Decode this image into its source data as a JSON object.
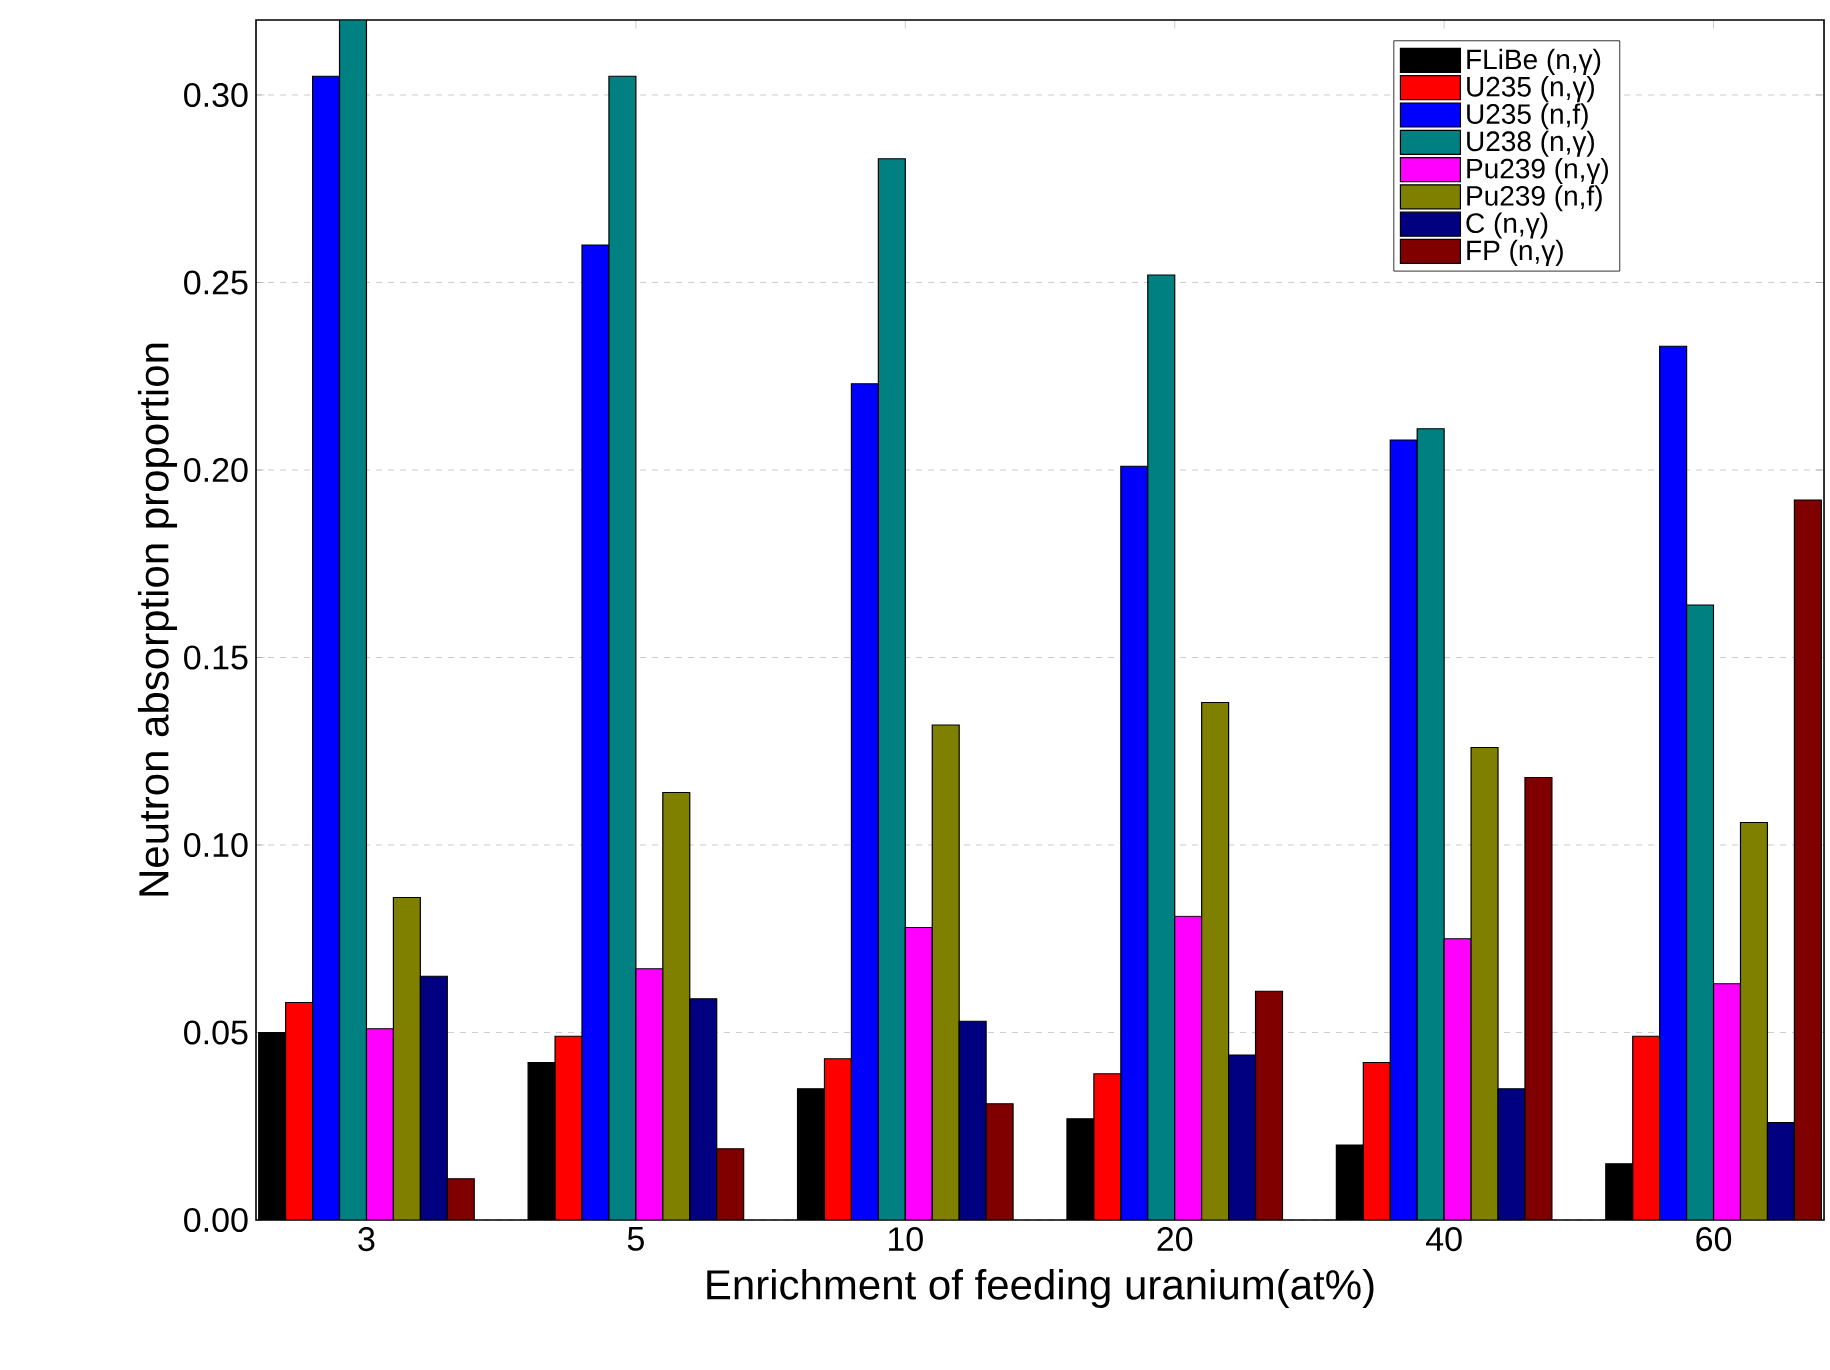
{
  "chart_data": {
    "type": "bar",
    "xlabel": "Enrichment of feeding uranium(at%)",
    "ylabel": "Neutron absorption proportion",
    "categories": [
      "3",
      "5",
      "10",
      "20",
      "40",
      "60"
    ],
    "series": [
      {
        "name": "FLiBe (n,γ)",
        "color": "#000000",
        "values": [
          0.05,
          0.042,
          0.035,
          0.027,
          0.02,
          0.015
        ]
      },
      {
        "name": "U235 (n,γ)",
        "color": "#ff0000",
        "values": [
          0.058,
          0.049,
          0.043,
          0.039,
          0.042,
          0.049
        ]
      },
      {
        "name": "U235 (n,f)",
        "color": "#0000ff",
        "values": [
          0.305,
          0.26,
          0.223,
          0.201,
          0.208,
          0.233
        ]
      },
      {
        "name": "U238 (n,γ)",
        "color": "#008080",
        "values": [
          0.32,
          0.305,
          0.283,
          0.252,
          0.211,
          0.164
        ]
      },
      {
        "name": "Pu239 (n,γ)",
        "color": "#ff00ff",
        "values": [
          0.051,
          0.067,
          0.078,
          0.081,
          0.075,
          0.063
        ]
      },
      {
        "name": "Pu239 (n,f)",
        "color": "#808000",
        "values": [
          0.086,
          0.114,
          0.132,
          0.138,
          0.126,
          0.106
        ]
      },
      {
        "name": "C (n,γ)",
        "color": "#000080",
        "values": [
          0.065,
          0.059,
          0.053,
          0.044,
          0.035,
          0.026
        ]
      },
      {
        "name": "FP (n,γ)",
        "color": "#800000",
        "values": [
          0.011,
          0.019,
          0.031,
          0.061,
          0.118,
          0.192
        ]
      }
    ],
    "ylim": [
      0,
      0.32
    ],
    "yticks": [
      {
        "value": 0,
        "label": "0.00"
      },
      {
        "value": 0.05,
        "label": "0.05"
      },
      {
        "value": 0.1,
        "label": "0.10"
      },
      {
        "value": 0.15,
        "label": "0.15"
      },
      {
        "value": 0.2,
        "label": "0.20"
      },
      {
        "value": 0.25,
        "label": "0.25"
      },
      {
        "value": 0.3,
        "label": "0.30"
      }
    ],
    "grid": "y",
    "legend": "top right"
  }
}
